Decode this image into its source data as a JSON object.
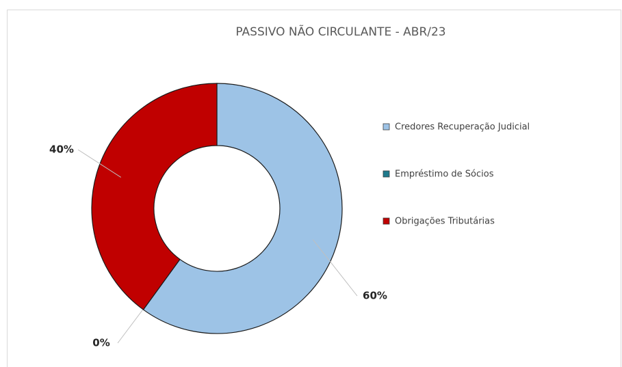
{
  "chart_data": {
    "type": "donut",
    "title": "PASSIVO NÃO CIRCULANTE - ABR/23",
    "categories": [
      "Credores Recuperação Judicial",
      "Empréstimo de Sócios",
      "Obrigações Tributárias"
    ],
    "values": [
      60,
      0,
      40
    ],
    "value_labels": [
      "60%",
      "0%",
      "40%"
    ],
    "colors": [
      "#9dc3e6",
      "#1f7a8c",
      "#c00000"
    ],
    "legend": "right"
  }
}
